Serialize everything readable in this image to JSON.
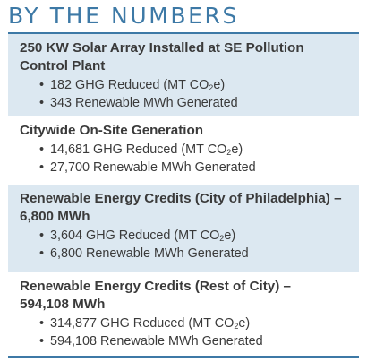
{
  "title": "BY THE NUMBERS",
  "sections": [
    {
      "heading_lines": [
        "250 KW Solar Array Installed at SE Pollution",
        "Control Plant"
      ],
      "bullets": [
        {
          "value": "182",
          "text": " GHG Reduced (MT CO",
          "sub": "2",
          "after": "e)"
        },
        {
          "value": "343",
          "text": " Renewable MWh Generated"
        }
      ]
    },
    {
      "heading_lines": [
        "Citywide On-Site Generation"
      ],
      "bullets": [
        {
          "value": "14,681",
          "text": " GHG Reduced (MT CO",
          "sub": "2",
          "after": "e)"
        },
        {
          "value": "27,700",
          "text": " Renewable MWh Generated"
        }
      ]
    },
    {
      "heading_lines": [
        "Renewable Energy Credits (City of Philadelphia) –",
        "6,800 MWh"
      ],
      "bullets": [
        {
          "value": "3,604",
          "text": " GHG Reduced (MT CO",
          "sub": "2",
          "after": "e)"
        },
        {
          "value": "6,800",
          "text": " Renewable MWh Generated"
        }
      ]
    },
    {
      "heading_lines": [
        "Renewable Energy Credits (Rest of City) –",
        "594,108 MWh"
      ],
      "bullets": [
        {
          "value": "314,877",
          "text": " GHG Reduced (MT CO",
          "sub": "2",
          "after": "e)"
        },
        {
          "value": "594,108",
          "text": " Renewable MWh Generated"
        }
      ]
    }
  ],
  "bullet_glyph": "•",
  "colors": {
    "title": "#3d79a6",
    "panel": "#dce8f1",
    "text": "#3a3a3a"
  }
}
